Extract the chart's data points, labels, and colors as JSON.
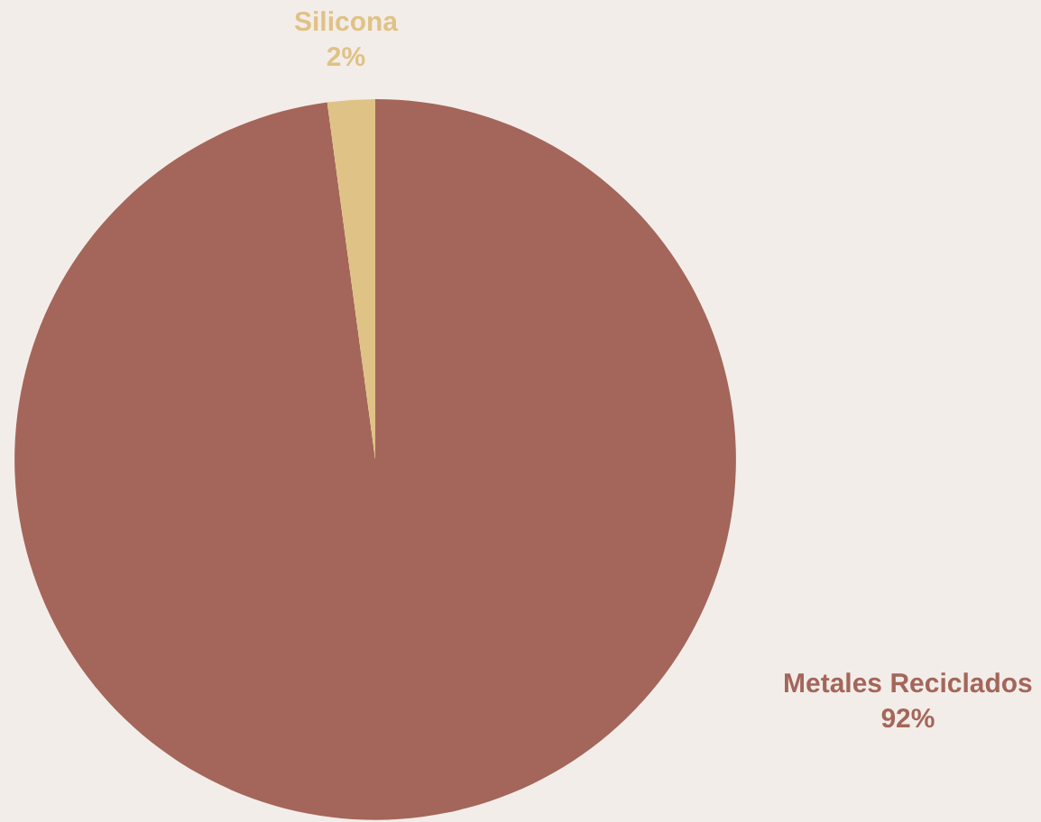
{
  "chart_data": {
    "type": "pie",
    "categories": [
      "Metales Reciclados",
      "Silicona"
    ],
    "values": [
      92,
      2
    ],
    "colors": [
      "#a4665a",
      "#dfc285"
    ],
    "value_labels": [
      "92%",
      "2%"
    ],
    "legend": false
  }
}
